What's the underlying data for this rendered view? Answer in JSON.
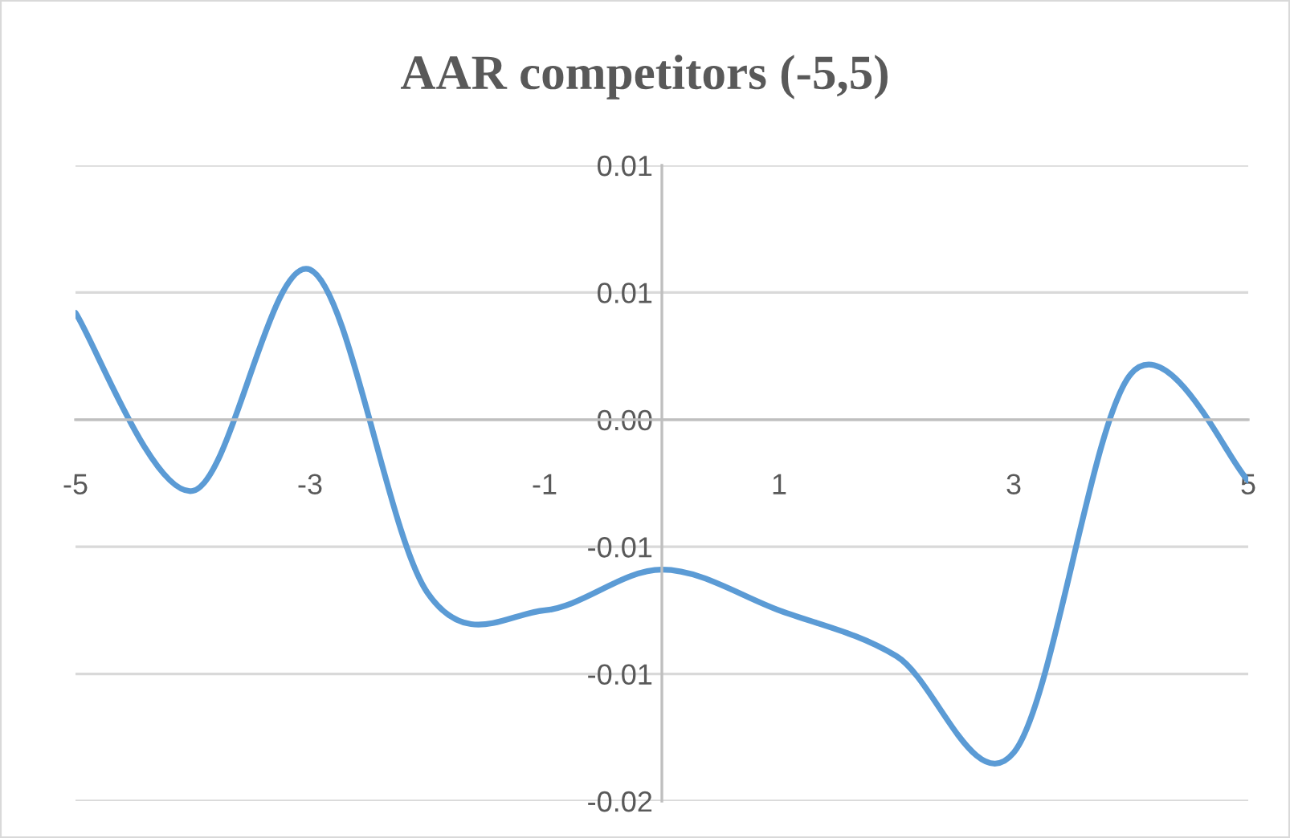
{
  "chart_data": {
    "type": "line",
    "title": "AAR competitors (-5,5)",
    "x": [
      -5,
      -4,
      -3,
      -2,
      -1,
      0,
      1,
      2,
      3,
      4,
      5
    ],
    "series": [
      {
        "color": "#5b9bd5",
        "values": [
          0.0042,
          -0.0028,
          0.0059,
          -0.0068,
          -0.0075,
          -0.0059,
          -0.0075,
          -0.0093,
          -0.0131,
          0.0018,
          -0.0024
        ]
      }
    ],
    "xlim": [
      -5,
      5
    ],
    "xticks": [
      -5,
      -3,
      -1,
      1,
      3,
      5
    ],
    "ylim": [
      -0.015,
      0.01
    ],
    "yticks": [
      {
        "value": 0.01,
        "label": "0.01"
      },
      {
        "value": 0.005,
        "label": "0.01"
      },
      {
        "value": 0,
        "label": "0.00"
      },
      {
        "value": -0.005,
        "label": "-0.01"
      },
      {
        "value": -0.01,
        "label": "-0.01"
      },
      {
        "value": -0.015,
        "label": "-0.02"
      }
    ],
    "grid": "y",
    "marker": "none",
    "line_style": "solid",
    "legend": false
  }
}
